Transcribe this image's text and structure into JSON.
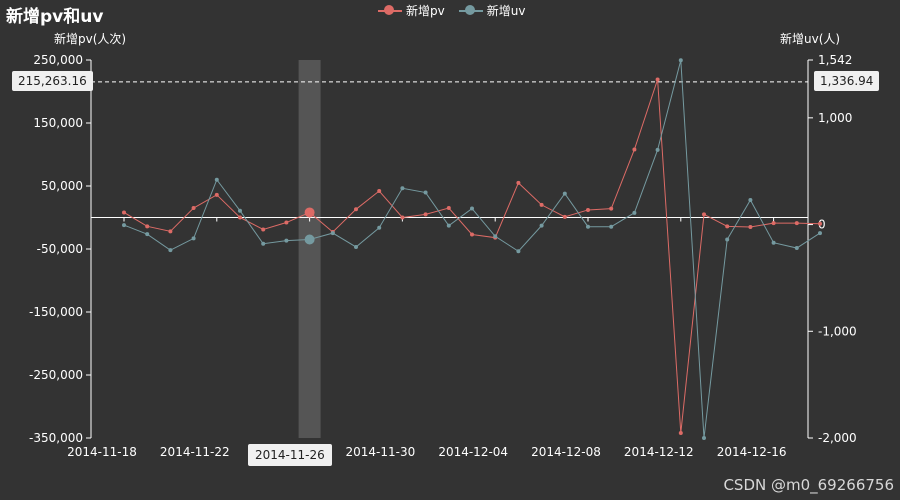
{
  "title": "新增pv和uv",
  "watermark": "CSDN @m0_69266756",
  "axis_pointer": {
    "x_label": "2014-11-26",
    "left_label": "215,263.16",
    "right_label": "1,336.94"
  },
  "colors": {
    "background": "#333333",
    "pv": "#dd6b66",
    "uv": "#759aa0",
    "axis": "#ffffff",
    "highlight_band": "#555555"
  },
  "chart_data": {
    "type": "line",
    "title": "新增pv和uv",
    "y_left": {
      "label": "新增pv(人次)",
      "range": [
        -350000,
        250000
      ],
      "ticks": [
        250000,
        150000,
        50000,
        -50000,
        -150000,
        -250000,
        -350000
      ],
      "tick_labels": [
        "250,000",
        "150,000",
        "50,000",
        "-50,000",
        "-150,000",
        "-250,000",
        "-350,000"
      ]
    },
    "y_right": {
      "label": "新增uv(人)",
      "range": [
        -2000,
        1542
      ],
      "ticks": [
        1542,
        1000,
        0,
        -1000,
        -2000
      ],
      "tick_labels": [
        "1,542",
        "1,000",
        "0",
        "-1,000",
        "-2,000"
      ]
    },
    "x_tick_labels": [
      "2014-11-18",
      "2014-11-22",
      "2014-11-26",
      "2014-11-30",
      "2014-12-04",
      "2014-12-08",
      "2014-12-12",
      "2014-12-16"
    ],
    "x_tick_dates_index": [
      0,
      4,
      8,
      12,
      16,
      20,
      24,
      28
    ],
    "categories": [
      "2014-11-18",
      "2014-11-19",
      "2014-11-20",
      "2014-11-21",
      "2014-11-22",
      "2014-11-23",
      "2014-11-24",
      "2014-11-25",
      "2014-11-26",
      "2014-11-27",
      "2014-11-28",
      "2014-11-29",
      "2014-11-30",
      "2014-12-01",
      "2014-12-02",
      "2014-12-03",
      "2014-12-04",
      "2014-12-05",
      "2014-12-06",
      "2014-12-07",
      "2014-12-08",
      "2014-12-09",
      "2014-12-10",
      "2014-12-11",
      "2014-12-12",
      "2014-12-13",
      "2014-12-14",
      "2014-12-15",
      "2014-12-16",
      "2014-12-17",
      "2014-12-18"
    ],
    "highlighted_category": "2014-11-26",
    "series": [
      {
        "name": "新增pv",
        "axis": "left",
        "values": [
          8000,
          -14000,
          -22000,
          15000,
          36000,
          0,
          -19000,
          -8000,
          8000,
          -23000,
          13000,
          42000,
          0,
          5000,
          15000,
          -27000,
          -32000,
          55000,
          20000,
          1000,
          12000,
          14000,
          108000,
          219000,
          -342000,
          5000,
          -14000,
          -15000,
          -9000,
          -9000,
          -10000
        ],
        "color": "#dd6b66"
      },
      {
        "name": "新增uv",
        "axis": "right",
        "values": [
          -5,
          -90,
          -240,
          -130,
          420,
          130,
          -180,
          -150,
          -140,
          -80,
          -210,
          -30,
          340,
          300,
          -10,
          150,
          -110,
          -250,
          -10,
          290,
          -20,
          -20,
          110,
          700,
          1540,
          -2000,
          -140,
          230,
          -170,
          -220,
          -80
        ],
        "color": "#759aa0"
      }
    ],
    "grid": false,
    "legend_position": "top-center"
  }
}
